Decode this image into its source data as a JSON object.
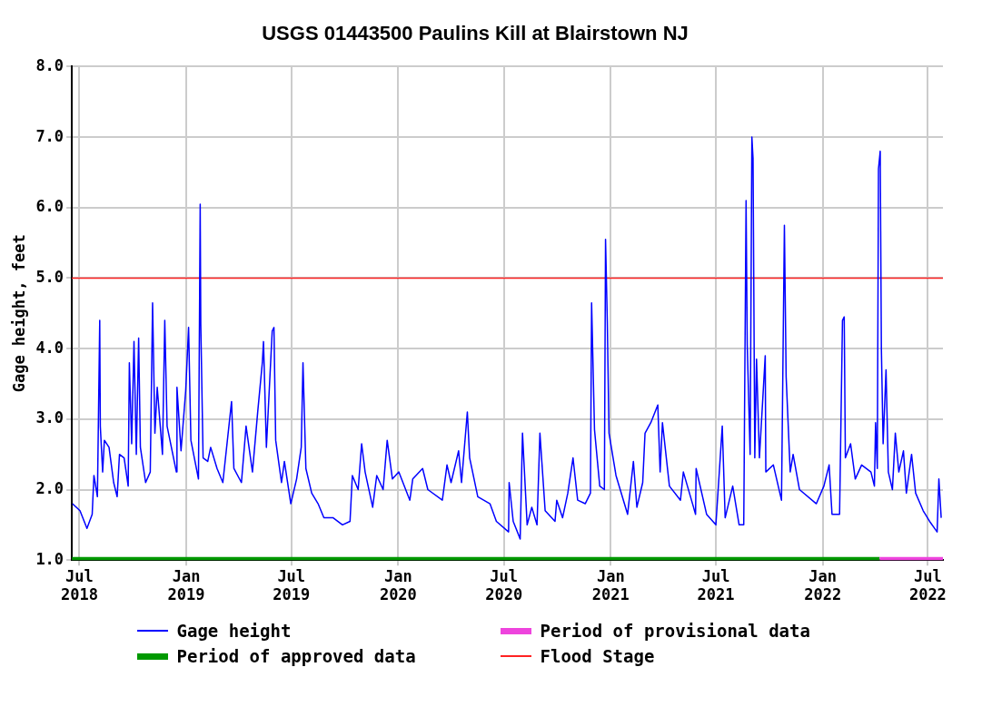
{
  "chart_data": {
    "type": "line",
    "title": "USGS 01443500 Paulins Kill at Blairstown NJ",
    "ylabel": "Gage height, feet",
    "x": [
      "2018-06-19",
      "2018-07-02",
      "2018-07-14",
      "2018-07-23",
      "2018-07-26",
      "2018-08-01",
      "2018-08-05",
      "2018-08-06",
      "2018-08-10",
      "2018-08-13",
      "2018-08-21",
      "2018-08-29",
      "2018-09-04",
      "2018-09-08",
      "2018-09-16",
      "2018-09-23",
      "2018-09-25",
      "2018-09-29",
      "2018-10-03",
      "2018-10-07",
      "2018-10-11",
      "2018-10-14",
      "2018-10-23",
      "2018-10-31",
      "2018-11-04",
      "2018-11-08",
      "2018-11-12",
      "2018-11-21",
      "2018-11-25",
      "2018-11-29",
      "2018-12-15",
      "2018-12-16",
      "2018-12-23",
      "2018-12-31",
      "2019-01-05",
      "2019-01-09",
      "2019-01-22",
      "2019-01-25",
      "2019-01-26",
      "2019-01-30",
      "2019-02-07",
      "2019-02-12",
      "2019-02-23",
      "2019-03-05",
      "2019-03-20",
      "2019-03-24",
      "2019-04-06",
      "2019-04-14",
      "2019-04-25",
      "2019-05-04",
      "2019-05-12",
      "2019-05-14",
      "2019-05-19",
      "2019-05-29",
      "2019-06-01",
      "2019-06-04",
      "2019-06-14",
      "2019-06-19",
      "2019-06-30",
      "2019-07-10",
      "2019-07-18",
      "2019-07-21",
      "2019-07-26",
      "2019-08-05",
      "2019-08-16",
      "2019-08-26",
      "2019-09-11",
      "2019-09-27",
      "2019-10-10",
      "2019-10-14",
      "2019-10-24",
      "2019-10-30",
      "2019-11-05",
      "2019-11-18",
      "2019-11-25",
      "2019-12-06",
      "2019-12-13",
      "2019-12-22",
      "2020-01-02",
      "2020-01-21",
      "2020-01-26",
      "2020-02-12",
      "2020-02-21",
      "2020-03-17",
      "2020-03-25",
      "2020-04-01",
      "2020-04-14",
      "2020-04-19",
      "2020-04-29",
      "2020-05-03",
      "2020-05-17",
      "2020-06-07",
      "2020-06-18",
      "2020-07-09",
      "2020-07-10",
      "2020-07-17",
      "2020-07-29",
      "2020-08-02",
      "2020-08-10",
      "2020-08-18",
      "2020-08-27",
      "2020-09-01",
      "2020-09-10",
      "2020-09-27",
      "2020-09-30",
      "2020-10-10",
      "2020-10-19",
      "2020-10-28",
      "2020-11-05",
      "2020-11-18",
      "2020-11-27",
      "2020-11-29",
      "2020-12-04",
      "2020-12-13",
      "2020-12-21",
      "2020-12-23",
      "2020-12-26",
      "2020-12-29",
      "2021-01-10",
      "2021-01-30",
      "2021-02-09",
      "2021-02-15",
      "2021-02-25",
      "2021-03-01",
      "2021-03-11",
      "2021-03-23",
      "2021-03-27",
      "2021-03-31",
      "2021-04-12",
      "2021-05-01",
      "2021-05-06",
      "2021-05-27",
      "2021-05-28",
      "2021-06-15",
      "2021-07-01",
      "2021-07-12",
      "2021-07-17",
      "2021-07-30",
      "2021-08-10",
      "2021-08-18",
      "2021-08-22",
      "2021-08-24",
      "2021-08-29",
      "2021-09-01",
      "2021-09-03",
      "2021-09-06",
      "2021-09-09",
      "2021-09-14",
      "2021-09-24",
      "2021-09-25",
      "2021-10-08",
      "2021-10-22",
      "2021-10-27",
      "2021-10-30",
      "2021-11-06",
      "2021-11-11",
      "2021-11-22",
      "2021-12-21",
      "2022-01-03",
      "2022-01-12",
      "2022-01-17",
      "2022-01-30",
      "2022-02-04",
      "2022-02-07",
      "2022-02-09",
      "2022-02-18",
      "2022-02-26",
      "2022-03-09",
      "2022-03-25",
      "2022-03-31",
      "2022-04-02",
      "2022-04-05",
      "2022-04-07",
      "2022-04-10",
      "2022-04-12",
      "2022-04-15",
      "2022-04-20",
      "2022-04-24",
      "2022-05-01",
      "2022-05-06",
      "2022-05-12",
      "2022-05-20",
      "2022-05-25",
      "2022-06-03",
      "2022-06-10",
      "2022-06-23",
      "2022-07-04",
      "2022-07-17",
      "2022-07-20",
      "2022-07-24"
    ],
    "series": [
      {
        "name": "Gage height",
        "color": "#0000ff",
        "values": [
          1.8,
          1.7,
          1.45,
          1.65,
          2.2,
          1.9,
          4.4,
          2.9,
          2.25,
          2.7,
          2.6,
          2.1,
          1.9,
          2.5,
          2.45,
          2.05,
          3.8,
          2.65,
          4.1,
          2.5,
          4.15,
          2.6,
          2.1,
          2.25,
          4.65,
          2.8,
          3.45,
          2.5,
          4.4,
          2.9,
          2.25,
          3.45,
          2.55,
          3.4,
          4.3,
          2.7,
          2.15,
          6.05,
          4.35,
          2.45,
          2.4,
          2.6,
          2.3,
          2.1,
          3.25,
          2.3,
          2.1,
          2.9,
          2.25,
          3.1,
          3.8,
          4.1,
          2.6,
          4.25,
          4.3,
          2.7,
          2.1,
          2.4,
          1.8,
          2.15,
          2.6,
          3.8,
          2.3,
          1.95,
          1.8,
          1.6,
          1.6,
          1.5,
          1.55,
          2.2,
          2.0,
          2.65,
          2.25,
          1.75,
          2.2,
          2.0,
          2.7,
          2.15,
          2.25,
          1.85,
          2.15,
          2.3,
          2.0,
          1.85,
          2.35,
          2.1,
          2.55,
          2.1,
          3.1,
          2.45,
          1.9,
          1.8,
          1.55,
          1.4,
          2.1,
          1.55,
          1.3,
          2.8,
          1.5,
          1.75,
          1.5,
          2.8,
          1.7,
          1.55,
          1.85,
          1.6,
          1.95,
          2.45,
          1.85,
          1.8,
          1.95,
          4.65,
          2.85,
          2.05,
          2.0,
          5.55,
          4.4,
          2.8,
          2.2,
          1.65,
          2.4,
          1.75,
          2.1,
          2.8,
          2.95,
          3.2,
          2.25,
          2.95,
          2.05,
          1.85,
          2.25,
          1.65,
          2.3,
          1.65,
          1.5,
          2.9,
          1.6,
          2.05,
          1.5,
          1.5,
          6.1,
          4.05,
          2.5,
          7.0,
          6.7,
          2.45,
          3.85,
          2.45,
          3.9,
          2.25,
          2.35,
          1.85,
          5.75,
          3.6,
          2.25,
          2.5,
          2.0,
          1.8,
          2.05,
          2.35,
          1.65,
          1.65,
          4.4,
          4.45,
          2.45,
          2.65,
          2.15,
          2.35,
          2.25,
          2.05,
          2.95,
          2.3,
          6.55,
          6.8,
          4.0,
          2.65,
          3.7,
          2.25,
          2.0,
          2.8,
          2.25,
          2.55,
          1.95,
          2.5,
          1.95,
          1.7,
          1.55,
          1.4,
          2.15,
          1.6
        ]
      },
      {
        "name": "Period of provisional data",
        "color": "#ee44dd",
        "x": [
          "2022-04-09",
          "2022-07-27"
        ],
        "values": [
          1.0,
          1.0
        ]
      },
      {
        "name": "Period of approved data",
        "color": "#009900",
        "x": [
          "2018-06-18",
          "2022-04-09"
        ],
        "values": [
          1.0,
          1.0
        ]
      }
    ],
    "xlim": [
      "2018-06-18",
      "2022-07-27"
    ],
    "xticks": [
      {
        "value": "2018-07-01",
        "label": "Jul\n2018"
      },
      {
        "value": "2019-01-01",
        "label": "Jan\n2019"
      },
      {
        "value": "2019-07-01",
        "label": "Jul\n2019"
      },
      {
        "value": "2020-01-01",
        "label": "Jan\n2020"
      },
      {
        "value": "2020-07-01",
        "label": "Jul\n2020"
      },
      {
        "value": "2021-01-01",
        "label": "Jan\n2021"
      },
      {
        "value": "2021-07-01",
        "label": "Jul\n2021"
      },
      {
        "value": "2022-01-01",
        "label": "Jan\n2022"
      },
      {
        "value": "2022-07-01",
        "label": "Jul\n2022"
      }
    ],
    "ylim": [
      1,
      8
    ],
    "yticks": [
      {
        "value": 1,
        "label": "1.0"
      },
      {
        "value": 2,
        "label": "2.0"
      },
      {
        "value": 3,
        "label": "3.0"
      },
      {
        "value": 4,
        "label": "4.0"
      },
      {
        "value": 5,
        "label": "5.0"
      },
      {
        "value": 6,
        "label": "6.0"
      },
      {
        "value": 7,
        "label": "7.0"
      },
      {
        "value": 8,
        "label": "8.0"
      }
    ],
    "ref_lines": [
      {
        "axis": "y",
        "value": 5,
        "label": "Flood Stage",
        "color": "#ff2222"
      }
    ],
    "grid": true,
    "legend": "bottom",
    "marker": "none",
    "line_style": "solid"
  }
}
